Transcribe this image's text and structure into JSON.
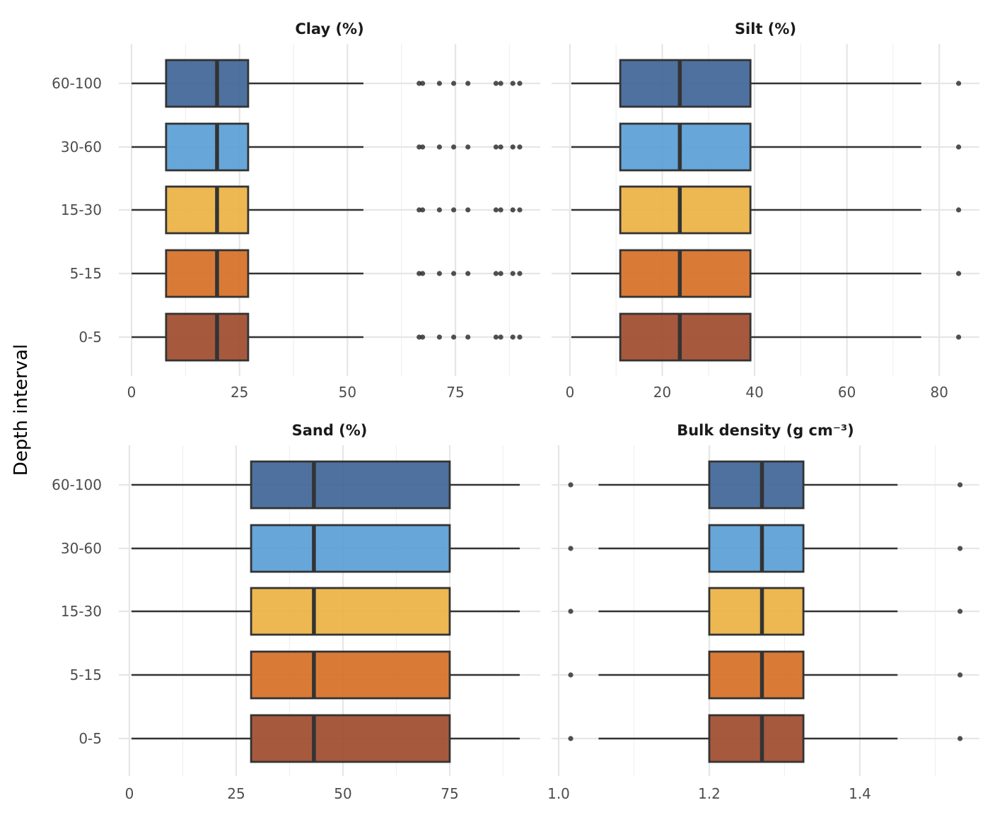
{
  "chart_data": {
    "type": "boxplot",
    "ylabel": "Depth interval",
    "categories": [
      "60-100",
      "30-60",
      "15-30",
      "5-15",
      "0-5"
    ],
    "category_colors": {
      "60-100": "#3f6597",
      "30-60": "#5a9ed6",
      "15-30": "#ebb243",
      "5-15": "#d67026",
      "0-5": "#a04b2e"
    },
    "grid": true,
    "panels": [
      {
        "title": "Clay (%)",
        "xlim": [
          -2.95,
          94.65
        ],
        "xticks": [
          0,
          25,
          50,
          75
        ],
        "xtick_labels": [
          "0",
          "25",
          "50",
          "75"
        ],
        "box": {
          "min": 0,
          "q1": 8.0,
          "median": 19.8,
          "q3": 27.0,
          "max": 53.7
        },
        "outliers": [
          66.6,
          67.4,
          71.3,
          74.6,
          77.9,
          84.4,
          85.5,
          88.3,
          89.9
        ]
      },
      {
        "title": "Silt (%)",
        "xlim": [
          -3.98,
          88.7
        ],
        "xticks": [
          0,
          20,
          40,
          60,
          80
        ],
        "xtick_labels": [
          "0",
          "20",
          "40",
          "60",
          "80"
        ],
        "box": {
          "min": 0.3,
          "q1": 10.9,
          "median": 23.8,
          "q3": 39.1,
          "max": 76.1
        },
        "outliers": [
          84.2
        ]
      },
      {
        "title": "Sand (%)",
        "xlim": [
          -2.48,
          96.2
        ],
        "xticks": [
          0,
          25,
          50,
          75
        ],
        "xtick_labels": [
          "0",
          "25",
          "50",
          "75"
        ],
        "box": {
          "min": 0.5,
          "q1": 28.5,
          "median": 43.2,
          "q3": 75.0,
          "max": 91.4
        },
        "outliers": []
      },
      {
        "title": "Bulk density (g cm⁻³)",
        "xlim": [
          0.9906,
          1.5587
        ],
        "xticks": [
          1.0,
          1.2,
          1.4
        ],
        "xtick_labels": [
          "1.0",
          "1.2",
          "1.4"
        ],
        "box": {
          "min": 1.053,
          "q1": 1.2,
          "median": 1.27,
          "q3": 1.325,
          "max": 1.45
        },
        "outliers": [
          1.016,
          1.533
        ]
      }
    ]
  }
}
